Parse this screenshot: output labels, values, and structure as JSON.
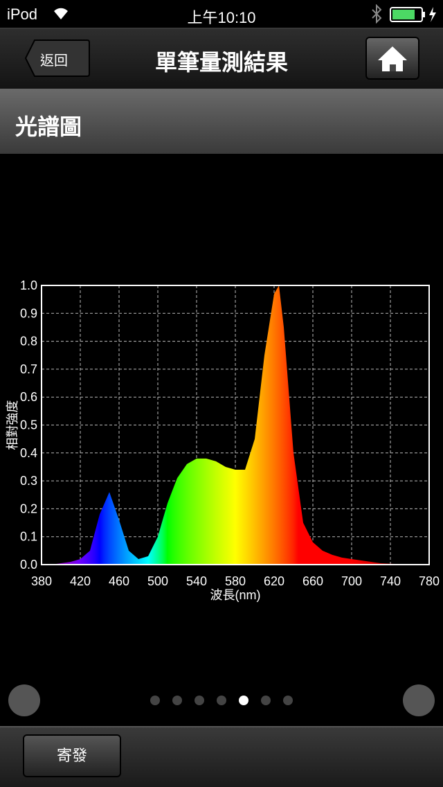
{
  "status_bar": {
    "device": "iPod",
    "time": "上午10:10"
  },
  "nav_bar": {
    "back": "返回",
    "title": "單筆量測結果"
  },
  "section": {
    "title": "光譜圖"
  },
  "chart_data": {
    "type": "area",
    "x_label": "波長(nm)",
    "y_label": "相對強度",
    "x": [
      380,
      390,
      400,
      410,
      420,
      430,
      440,
      450,
      460,
      470,
      480,
      490,
      500,
      510,
      520,
      530,
      540,
      550,
      560,
      570,
      580,
      590,
      600,
      610,
      620,
      625,
      630,
      640,
      650,
      660,
      670,
      680,
      690,
      700,
      710,
      720,
      730,
      740,
      750,
      760,
      770,
      780
    ],
    "series": [
      {
        "values": [
          0,
          0,
          0.005,
          0.01,
          0.02,
          0.05,
          0.18,
          0.26,
          0.16,
          0.05,
          0.02,
          0.03,
          0.1,
          0.22,
          0.31,
          0.36,
          0.38,
          0.38,
          0.37,
          0.35,
          0.34,
          0.34,
          0.45,
          0.75,
          0.97,
          1.0,
          0.85,
          0.4,
          0.15,
          0.08,
          0.05,
          0.035,
          0.025,
          0.02,
          0.015,
          0.01,
          0.005,
          0.003,
          0.002,
          0.001,
          0,
          0
        ]
      }
    ],
    "xlim": [
      380,
      780
    ],
    "ylim": [
      0,
      1
    ],
    "xticks": [
      380,
      420,
      460,
      500,
      540,
      580,
      620,
      660,
      700,
      740,
      780
    ],
    "yticks": [
      {
        "value": 0,
        "label": "0.0"
      },
      0.1,
      0.2,
      0.3,
      0.4,
      0.5,
      0.6,
      0.7,
      0.8,
      0.9,
      {
        "value": 1,
        "label": "1.0"
      }
    ],
    "grid": true
  },
  "pager": {
    "count": 7,
    "active": 4
  },
  "toolbar": {
    "button": "寄發"
  }
}
